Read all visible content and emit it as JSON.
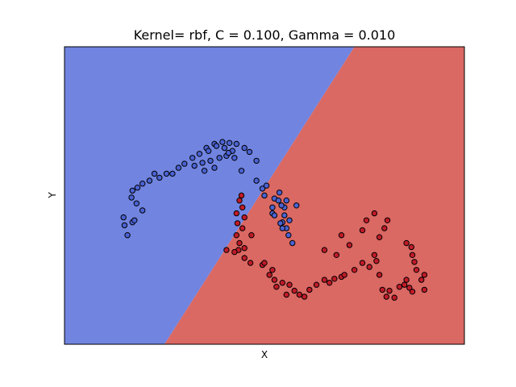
{
  "chart_data": {
    "type": "scatter",
    "title": "Kernel= rbf, C = 0.100, Gamma = 0.010",
    "xlabel": "X",
    "ylabel": "Y",
    "xticks": "none",
    "yticks": "none",
    "grid": false,
    "xlim": [
      -1.5,
      2.5
    ],
    "ylim": [
      -1.2,
      1.8
    ],
    "decision_regions": {
      "class_0_color": "#7184e0",
      "class_1_color": "#da6863",
      "boundary_line": [
        [
          -0.5,
          -1.2
        ],
        [
          1.4,
          1.8
        ]
      ]
    },
    "series": [
      {
        "class": 0,
        "color": "#4a62d2",
        "x": [
          -0.87,
          -0.9,
          -0.91,
          -0.82,
          -0.8,
          -0.72,
          -0.78,
          -0.83,
          -0.77,
          -0.82,
          -0.72,
          -0.65,
          -0.6,
          -0.55,
          -0.48,
          -0.42,
          -0.36,
          -0.3,
          -0.22,
          -0.15,
          -0.08,
          0.0,
          0.08,
          0.15,
          0.22,
          0.3,
          0.35,
          0.42,
          -0.06,
          0.02,
          0.1,
          0.18,
          -0.2,
          -0.12,
          0.05,
          0.12,
          -0.04,
          0.0,
          0.14,
          0.2,
          -0.1,
          0.27,
          0.42,
          0.48,
          0.52,
          0.5,
          0.58,
          0.6,
          0.64,
          0.7,
          0.72,
          0.65,
          0.75,
          0.82,
          0.74,
          0.78,
          0.68,
          0.72,
          0.67,
          0.58,
          0.68,
          0.6,
          0.66,
          0.7
        ],
        "y": [
          -0.1,
          0.0,
          0.08,
          0.03,
          0.05,
          0.15,
          0.22,
          0.28,
          0.38,
          0.35,
          0.42,
          0.45,
          0.52,
          0.48,
          0.52,
          0.52,
          0.58,
          0.62,
          0.68,
          0.72,
          0.78,
          0.82,
          0.84,
          0.83,
          0.82,
          0.78,
          0.74,
          0.65,
          0.75,
          0.8,
          0.78,
          0.75,
          0.6,
          0.63,
          0.68,
          0.7,
          0.65,
          0.58,
          0.73,
          0.68,
          0.55,
          0.55,
          0.45,
          0.37,
          0.4,
          0.3,
          0.18,
          0.27,
          0.25,
          0.18,
          0.25,
          0.33,
          0.05,
          0.2,
          -0.1,
          -0.18,
          0.03,
          -0.03,
          0.2,
          0.12,
          -0.03,
          0.1,
          0.02,
          0.1
        ]
      },
      {
        "class": 1,
        "color": "#c11a28",
        "x": [
          0.27,
          0.25,
          0.28,
          0.3,
          0.22,
          0.23,
          0.28,
          0.22,
          0.25,
          0.24,
          0.12,
          0.2,
          0.3,
          0.3,
          0.37,
          0.36,
          0.48,
          0.55,
          0.58,
          0.5,
          0.6,
          0.62,
          0.68,
          0.75,
          0.72,
          0.8,
          0.85,
          0.9,
          0.95,
          1.02,
          1.1,
          1.15,
          1.2,
          1.27,
          1.3,
          1.4,
          1.48,
          1.55,
          1.6,
          1.62,
          1.65,
          1.68,
          1.72,
          1.75,
          1.8,
          1.85,
          1.9,
          1.92,
          1.95,
          1.98,
          2.1,
          2.07,
          2.1,
          2.02,
          2.0,
          1.98,
          1.97,
          1.92,
          1.65,
          1.7,
          1.73,
          1.6,
          1.52,
          1.48,
          1.35,
          1.27,
          1.1,
          1.22
        ],
        "y": [
          0.3,
          0.25,
          0.18,
          0.08,
          0.12,
          0.02,
          -0.03,
          -0.1,
          -0.18,
          -0.25,
          -0.25,
          -0.27,
          -0.23,
          -0.33,
          -0.1,
          -0.38,
          -0.4,
          -0.5,
          -0.45,
          -0.38,
          -0.55,
          -0.62,
          -0.58,
          -0.6,
          -0.7,
          -0.66,
          -0.7,
          -0.72,
          -0.65,
          -0.6,
          -0.55,
          -0.58,
          -0.54,
          -0.52,
          -0.5,
          -0.45,
          -0.38,
          -0.42,
          -0.3,
          -0.36,
          -0.5,
          -0.65,
          -0.72,
          -0.66,
          -0.73,
          -0.62,
          -0.6,
          -0.55,
          -0.63,
          -0.67,
          -0.65,
          -0.55,
          -0.5,
          -0.45,
          -0.37,
          -0.3,
          -0.22,
          -0.18,
          -0.12,
          -0.03,
          0.05,
          0.12,
          0.05,
          -0.05,
          -0.2,
          -0.1,
          -0.25,
          -0.3
        ]
      }
    ]
  }
}
